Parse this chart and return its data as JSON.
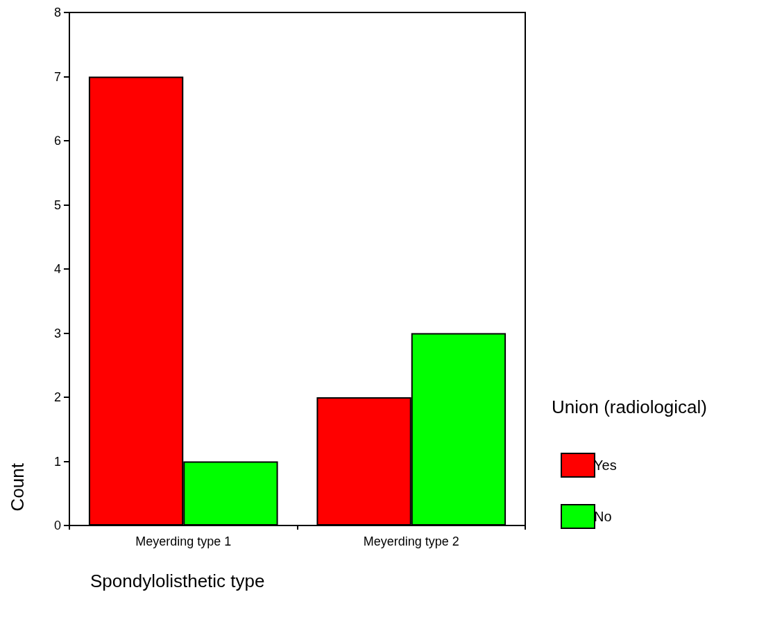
{
  "chart_data": {
    "type": "bar",
    "xlabel": "Spondylolisthetic type",
    "ylabel": "Count",
    "legend_title": "Union (radiological)",
    "categories": [
      "Meyerding type 1",
      "Meyerding type 2"
    ],
    "series": [
      {
        "name": "Yes",
        "color": "#ff0000",
        "values": [
          7,
          2
        ]
      },
      {
        "name": "No",
        "color": "#00ff00",
        "values": [
          1,
          3
        ]
      }
    ],
    "ylim": [
      0,
      8
    ],
    "yticks": [
      0,
      1,
      2,
      3,
      4,
      5,
      6,
      7,
      8
    ],
    "grid": false,
    "legend": "right"
  }
}
